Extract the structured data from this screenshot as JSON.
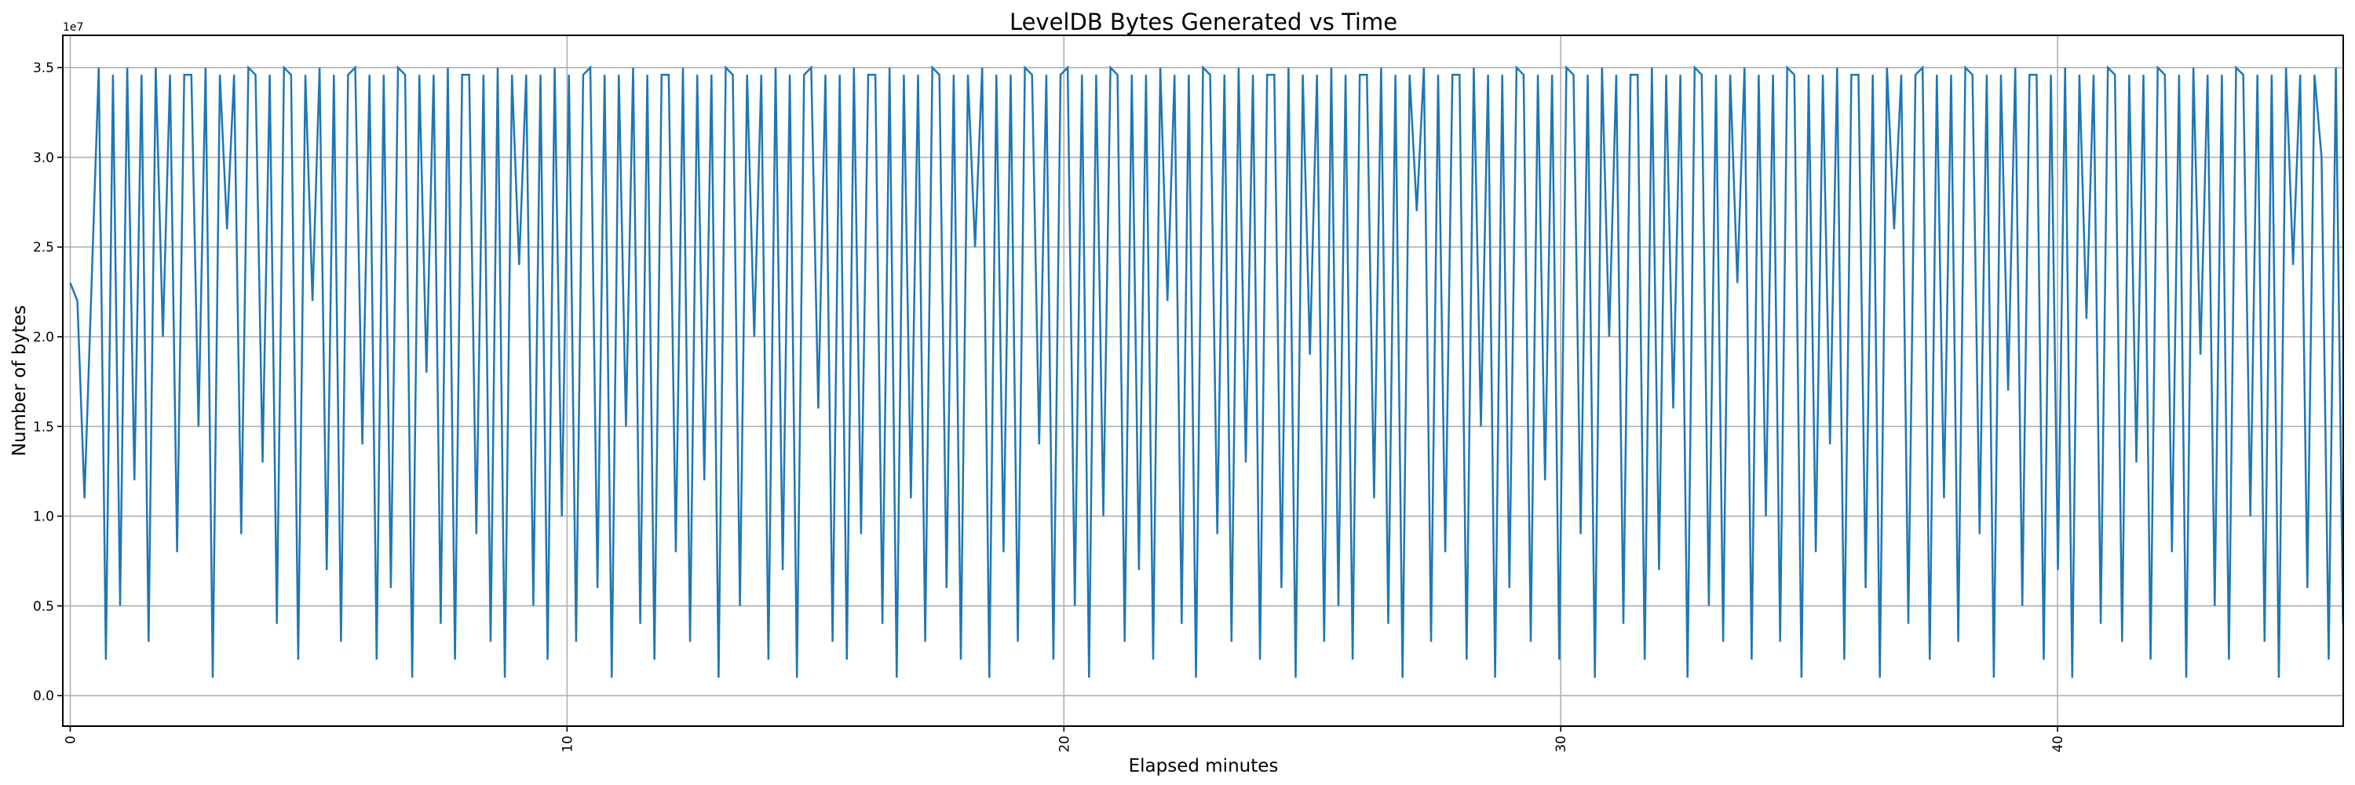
{
  "chart_data": {
    "type": "line",
    "title": "LevelDB Bytes Generated vs Time",
    "xlabel": "Elapsed minutes",
    "ylabel": "Number of bytes",
    "y_offset_label": "1e7",
    "y_scale": 10000000,
    "xlim": [
      -0.15,
      45.75
    ],
    "ylim": [
      -0.17,
      3.68
    ],
    "xticks": [
      0,
      10,
      20,
      30,
      40
    ],
    "xtick_labels": [
      "0",
      "10",
      "20",
      "30",
      "40"
    ],
    "yticks": [
      0,
      0.5,
      1.0,
      1.5,
      2.0,
      2.5,
      3.0,
      3.5
    ],
    "ytick_labels": [
      "0.0",
      "0.5",
      "1.0",
      "1.5",
      "2.0",
      "2.5",
      "3.0",
      "3.5"
    ],
    "grid": true,
    "color": "#1f77b4",
    "series": [
      {
        "name": "bytes",
        "x_start": 0,
        "x_step": 0.1434,
        "values": [
          2.3,
          2.2,
          1.1,
          2.3,
          3.5,
          0.2,
          3.46,
          0.5,
          3.5,
          1.2,
          3.46,
          0.3,
          3.5,
          2.0,
          3.46,
          0.8,
          3.46,
          3.46,
          1.5,
          3.5,
          0.1,
          3.46,
          2.6,
          3.46,
          0.9,
          3.5,
          3.46,
          1.3,
          3.46,
          0.4,
          3.5,
          3.46,
          0.2,
          3.46,
          2.2,
          3.5,
          0.7,
          3.46,
          0.3,
          3.46,
          3.5,
          1.4,
          3.46,
          0.2,
          3.46,
          0.6,
          3.5,
          3.46,
          0.1,
          3.46,
          1.8,
          3.46,
          0.4,
          3.5,
          0.2,
          3.46,
          3.46,
          0.9,
          3.46,
          0.3,
          3.5,
          0.1,
          3.46,
          2.4,
          3.46,
          0.5,
          3.46,
          0.2,
          3.5,
          1.0,
          3.46,
          0.3,
          3.46,
          3.5,
          0.6,
          3.46,
          0.1,
          3.46,
          1.5,
          3.5,
          0.4,
          3.46,
          0.2,
          3.46,
          3.46,
          0.8,
          3.5,
          0.3,
          3.46,
          1.2,
          3.46,
          0.1,
          3.5,
          3.46,
          0.5,
          3.46,
          2.0,
          3.46,
          0.2,
          3.5,
          0.7,
          3.46,
          0.1,
          3.46,
          3.5,
          1.6,
          3.46,
          0.3,
          3.46,
          0.2,
          3.5,
          0.9,
          3.46,
          3.46,
          0.4,
          3.5,
          0.1,
          3.46,
          1.1,
          3.46,
          0.3,
          3.5,
          3.46,
          0.6,
          3.46,
          0.2,
          3.46,
          2.5,
          3.5,
          0.1,
          3.46,
          0.8,
          3.46,
          0.3,
          3.5,
          3.46,
          1.4,
          3.46,
          0.2,
          3.46,
          3.5,
          0.5,
          3.46,
          0.1,
          3.46,
          1.0,
          3.5,
          3.46,
          0.3,
          3.46,
          0.7,
          3.46,
          0.2,
          3.5,
          2.2,
          3.46,
          0.4,
          3.46,
          0.1,
          3.5,
          3.46,
          0.9,
          3.46,
          0.3,
          3.5,
          1.3,
          3.46,
          0.2,
          3.46,
          3.46,
          0.6,
          3.5,
          0.1,
          3.46,
          1.9,
          3.46,
          0.3,
          3.5,
          0.5,
          3.46,
          0.2,
          3.46,
          3.46,
          1.1,
          3.5,
          0.4,
          3.46,
          0.1,
          3.46,
          2.7,
          3.5,
          0.3,
          3.46,
          0.8,
          3.46,
          3.46,
          0.2,
          3.5,
          1.5,
          3.46,
          0.1,
          3.46,
          0.6,
          3.5,
          3.46,
          0.3,
          3.46,
          1.2,
          3.46,
          0.2,
          3.5,
          3.46,
          0.9,
          3.46,
          0.1,
          3.5,
          2.0,
          3.46,
          0.4,
          3.46,
          3.46,
          0.2,
          3.5,
          0.7,
          3.46,
          1.6,
          3.46,
          0.1,
          3.5,
          3.46,
          0.5,
          3.46,
          0.3,
          3.46,
          2.3,
          3.5,
          0.2,
          3.46,
          1.0,
          3.46,
          0.3,
          3.5,
          3.46,
          0.1,
          3.46,
          0.8,
          3.46,
          1.4,
          3.5,
          0.2,
          3.46,
          3.46,
          0.6,
          3.46,
          0.1,
          3.5,
          2.6,
          3.46,
          0.4,
          3.46,
          3.5,
          0.2,
          3.46,
          1.1,
          3.46,
          0.3,
          3.5,
          3.46,
          0.9,
          3.46,
          0.1,
          3.46,
          1.7,
          3.5,
          0.5,
          3.46,
          3.46,
          0.2,
          3.46,
          0.7,
          3.5,
          0.1,
          3.46,
          2.1,
          3.46,
          0.4,
          3.5,
          3.46,
          0.3,
          3.46,
          1.3,
          3.46,
          0.2,
          3.5,
          3.46,
          0.8,
          3.46,
          0.1,
          3.5,
          1.9,
          3.46,
          0.5,
          3.46,
          0.2,
          3.5,
          3.46,
          1.0,
          3.46,
          0.3,
          3.46,
          0.1,
          3.5,
          2.4,
          3.46,
          0.6,
          3.46,
          3.0,
          0.2,
          3.5,
          0.4
        ]
      }
    ]
  }
}
